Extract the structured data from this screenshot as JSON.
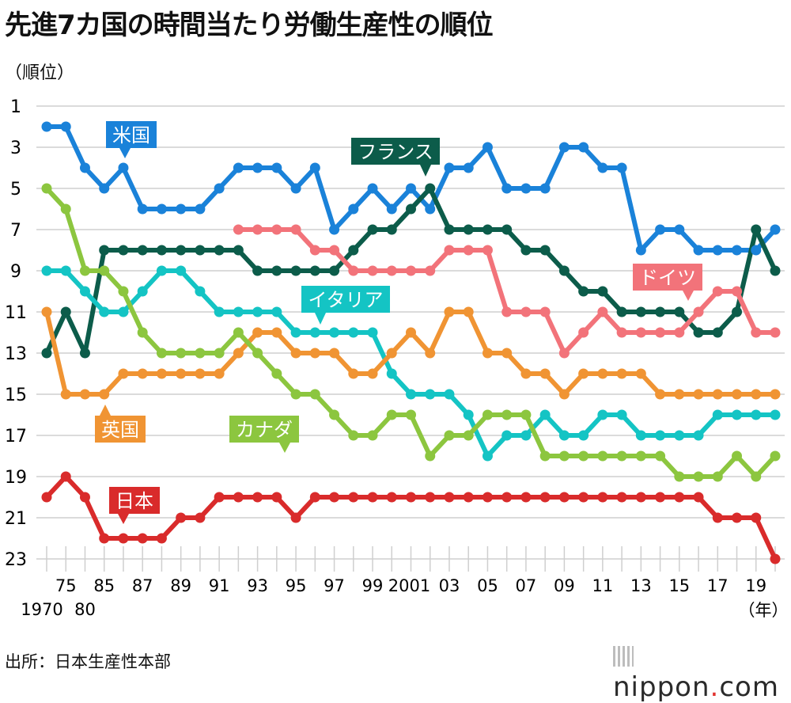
{
  "title": "先進7カ国の時間当たり労働生産性の順位",
  "source": "出所：日本生産性本部",
  "logo": {
    "main": "nippon",
    "dot": ".",
    "suffix": "com"
  },
  "chart_data": {
    "type": "line",
    "title": "先進7カ国の時間当たり労働生産性の順位",
    "ylabel": "（順位）",
    "xlabel": "（年）",
    "y_inverted": true,
    "ylim": [
      1,
      23
    ],
    "yticks": [
      1,
      3,
      5,
      7,
      9,
      11,
      13,
      15,
      17,
      19,
      21,
      23
    ],
    "x": [
      1970,
      1975,
      1980,
      1985,
      1986,
      1987,
      1988,
      1989,
      1990,
      1991,
      1992,
      1993,
      1994,
      1995,
      1996,
      1997,
      1998,
      1999,
      2000,
      2001,
      2002,
      2003,
      2004,
      2005,
      2006,
      2007,
      2008,
      2009,
      2010,
      2011,
      2012,
      2013,
      2014,
      2015,
      2016,
      2017,
      2018,
      2019,
      2020
    ],
    "xtick_labels": [
      {
        "year": 1975,
        "label": "75",
        "row": 1
      },
      {
        "year": 1985,
        "label": "85",
        "row": 1
      },
      {
        "year": 1987,
        "label": "87",
        "row": 1
      },
      {
        "year": 1989,
        "label": "89",
        "row": 1
      },
      {
        "year": 1991,
        "label": "91",
        "row": 1
      },
      {
        "year": 1993,
        "label": "93",
        "row": 1
      },
      {
        "year": 1995,
        "label": "95",
        "row": 1
      },
      {
        "year": 1997,
        "label": "97",
        "row": 1
      },
      {
        "year": 1999,
        "label": "99",
        "row": 1
      },
      {
        "year": 2001,
        "label": "2001",
        "row": 1
      },
      {
        "year": 2003,
        "label": "03",
        "row": 1
      },
      {
        "year": 2005,
        "label": "05",
        "row": 1
      },
      {
        "year": 2007,
        "label": "07",
        "row": 1
      },
      {
        "year": 2009,
        "label": "09",
        "row": 1
      },
      {
        "year": 2011,
        "label": "11",
        "row": 1
      },
      {
        "year": 2013,
        "label": "13",
        "row": 1
      },
      {
        "year": 2015,
        "label": "15",
        "row": 1
      },
      {
        "year": 2017,
        "label": "17",
        "row": 1
      },
      {
        "year": 2019,
        "label": "19",
        "row": 1
      },
      {
        "year": 1970,
        "label": "1970",
        "row": 2
      },
      {
        "year": 1980,
        "label": "80",
        "row": 2
      }
    ],
    "series": [
      {
        "name": "米国",
        "color": "#1a82d9",
        "label": "米国",
        "values": [
          2,
          2,
          4,
          5,
          4,
          6,
          6,
          6,
          6,
          5,
          4,
          4,
          4,
          5,
          4,
          7,
          6,
          5,
          6,
          5,
          6,
          4,
          4,
          3,
          5,
          5,
          5,
          3,
          3,
          4,
          4,
          8,
          7,
          7,
          8,
          8,
          8,
          8,
          7
        ]
      },
      {
        "name": "フランス",
        "color": "#0c5c4a",
        "label": "フランス",
        "values": [
          13,
          11,
          13,
          8,
          8,
          8,
          8,
          8,
          8,
          8,
          8,
          9,
          9,
          9,
          9,
          9,
          8,
          7,
          7,
          6,
          5,
          7,
          7,
          7,
          7,
          8,
          8,
          9,
          10,
          10,
          11,
          11,
          11,
          11,
          12,
          12,
          11,
          7,
          9
        ]
      },
      {
        "name": "ドイツ",
        "color": "#f2737a",
        "label": "ドイツ",
        "values": [
          null,
          null,
          null,
          null,
          null,
          null,
          null,
          null,
          null,
          null,
          7,
          7,
          7,
          7,
          8,
          8,
          9,
          9,
          9,
          9,
          9,
          8,
          8,
          8,
          11,
          11,
          11,
          13,
          12,
          11,
          12,
          12,
          12,
          12,
          11,
          10,
          10,
          12,
          12
        ]
      },
      {
        "name": "イタリア",
        "color": "#14c4c4",
        "label": "イタリア",
        "values": [
          9,
          9,
          10,
          11,
          11,
          10,
          9,
          9,
          10,
          11,
          11,
          11,
          11,
          12,
          12,
          12,
          12,
          12,
          14,
          15,
          15,
          15,
          16,
          18,
          17,
          17,
          16,
          17,
          17,
          16,
          16,
          17,
          17,
          17,
          17,
          16,
          16,
          16,
          16
        ]
      },
      {
        "name": "英国",
        "color": "#f09433",
        "label": "英国",
        "values": [
          11,
          15,
          15,
          15,
          14,
          14,
          14,
          14,
          14,
          14,
          13,
          12,
          12,
          13,
          13,
          13,
          14,
          14,
          13,
          12,
          13,
          11,
          11,
          13,
          13,
          14,
          14,
          15,
          14,
          14,
          14,
          14,
          15,
          15,
          15,
          15,
          15,
          15,
          15
        ]
      },
      {
        "name": "カナダ",
        "color": "#8cc63f",
        "label": "カナダ",
        "values": [
          5,
          6,
          9,
          9,
          10,
          12,
          13,
          13,
          13,
          13,
          12,
          13,
          14,
          15,
          15,
          16,
          17,
          17,
          16,
          16,
          18,
          17,
          17,
          16,
          16,
          16,
          18,
          18,
          18,
          18,
          18,
          18,
          18,
          19,
          19,
          19,
          18,
          19,
          18
        ]
      },
      {
        "name": "日本",
        "color": "#d92b2b",
        "label": "日本",
        "values": [
          20,
          19,
          20,
          22,
          22,
          22,
          22,
          21,
          21,
          20,
          20,
          20,
          20,
          21,
          20,
          20,
          20,
          20,
          20,
          20,
          20,
          20,
          20,
          20,
          20,
          20,
          20,
          20,
          20,
          20,
          20,
          20,
          20,
          20,
          20,
          21,
          21,
          21,
          23
        ]
      }
    ]
  }
}
